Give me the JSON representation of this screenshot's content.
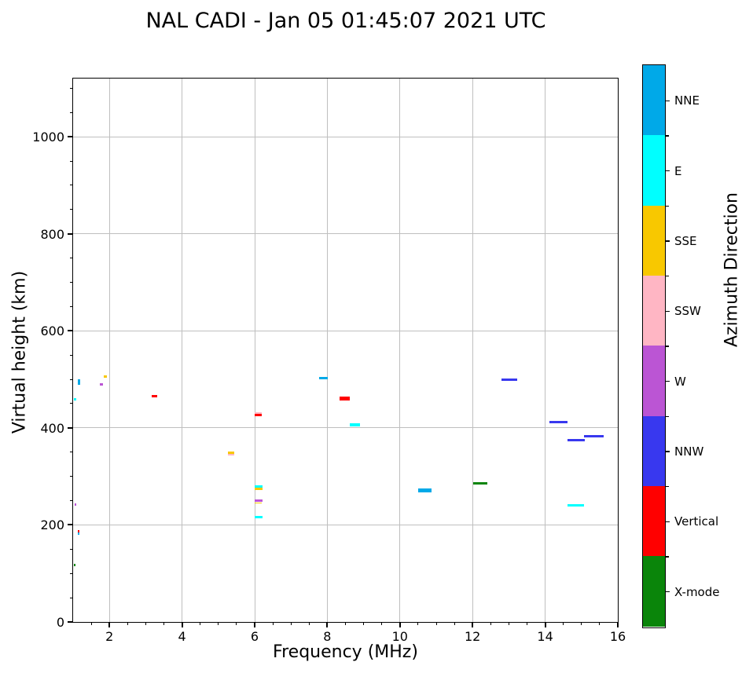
{
  "title": "NAL CADI - Jan 05 01:45:07 2021 UTC",
  "chart_data": {
    "type": "scatter",
    "title": "NAL CADI - Jan 05 01:45:07 2021 UTC",
    "xlabel": "Frequency (MHz)",
    "ylabel": "Virtual height (km)",
    "xlim": [
      1,
      16
    ],
    "ylim": [
      0,
      1120
    ],
    "x_major_ticks": [
      2,
      4,
      6,
      8,
      10,
      12,
      14,
      16
    ],
    "x_minor_step": 0.5,
    "y_major_ticks": [
      0,
      200,
      400,
      600,
      800,
      1000
    ],
    "y_minor_step": 50,
    "grid": true,
    "grid_color": "#bfbfbf",
    "colorbar": {
      "label": "Azimuth Direction",
      "entries_top_to_bottom": [
        {
          "label": "NNE",
          "color": "#00A9E8"
        },
        {
          "label": "E",
          "color": "#00FFFF"
        },
        {
          "label": "SSE",
          "color": "#F8C800"
        },
        {
          "label": "SSW",
          "color": "#FFB6C4"
        },
        {
          "label": "W",
          "color": "#BB55D4"
        },
        {
          "label": "NNW",
          "color": "#3838EF"
        },
        {
          "label": "Vertical",
          "color": "#FF0000"
        },
        {
          "label": "X-mode",
          "color": "#0A850A"
        }
      ]
    },
    "points": [
      {
        "direction": "E",
        "freq_mhz": [
          1.02,
          1.08
        ],
        "height_km": 459,
        "thickness_px": 2.5
      },
      {
        "direction": "NNE",
        "freq_mhz": [
          1.12,
          1.19
        ],
        "height_km": 494,
        "thickness_px": 7
      },
      {
        "direction": "W",
        "freq_mhz": [
          1.74,
          1.83
        ],
        "height_km": 489,
        "thickness_px": 3
      },
      {
        "direction": "SSE",
        "freq_mhz": [
          1.85,
          1.94
        ],
        "height_km": 505,
        "thickness_px": 3
      },
      {
        "direction": "W",
        "freq_mhz": [
          1.05,
          1.09
        ],
        "height_km": 242,
        "thickness_px": 2.5
      },
      {
        "direction": "Vertical",
        "freq_mhz": [
          1.12,
          1.18
        ],
        "height_km": 187,
        "thickness_px": 3
      },
      {
        "direction": "NNE",
        "freq_mhz": [
          1.12,
          1.18
        ],
        "height_km": 182,
        "thickness_px": 3
      },
      {
        "direction": "X-mode",
        "freq_mhz": [
          1.02,
          1.07
        ],
        "height_km": 117,
        "thickness_px": 2.5
      },
      {
        "direction": "Vertical",
        "freq_mhz": [
          3.17,
          3.31
        ],
        "height_km": 465,
        "thickness_px": 3
      },
      {
        "direction": "SSE",
        "freq_mhz": [
          5.26,
          5.43
        ],
        "height_km": 349,
        "thickness_px": 3
      },
      {
        "direction": "SSW",
        "freq_mhz": [
          5.26,
          5.43
        ],
        "height_km": 345,
        "thickness_px": 2.5
      },
      {
        "direction": "SSW",
        "freq_mhz": [
          6.01,
          6.2
        ],
        "height_km": 430,
        "thickness_px": 2.5
      },
      {
        "direction": "Vertical",
        "freq_mhz": [
          6.01,
          6.2
        ],
        "height_km": 426,
        "thickness_px": 3
      },
      {
        "direction": "E",
        "freq_mhz": [
          6.01,
          6.21
        ],
        "height_km": 279,
        "thickness_px": 2.5
      },
      {
        "direction": "SSE",
        "freq_mhz": [
          6.01,
          6.21
        ],
        "height_km": 274,
        "thickness_px": 2.5
      },
      {
        "direction": "W",
        "freq_mhz": [
          5.99,
          6.21
        ],
        "height_km": 250,
        "thickness_px": 3
      },
      {
        "direction": "SSE",
        "freq_mhz": [
          6.01,
          6.19
        ],
        "height_km": 245,
        "thickness_px": 1.5
      },
      {
        "direction": "E",
        "freq_mhz": [
          6.01,
          6.21
        ],
        "height_km": 216,
        "thickness_px": 2.5
      },
      {
        "direction": "NNE",
        "freq_mhz": [
          7.78,
          8.02
        ],
        "height_km": 503,
        "thickness_px": 3
      },
      {
        "direction": "Vertical",
        "freq_mhz": [
          8.34,
          8.63
        ],
        "height_km": 460,
        "thickness_px": 5
      },
      {
        "direction": "E",
        "freq_mhz": [
          8.61,
          8.91
        ],
        "height_km": 407,
        "thickness_px": 4
      },
      {
        "direction": "NNE",
        "freq_mhz": [
          10.5,
          10.86
        ],
        "height_km": 271,
        "thickness_px": 4.5
      },
      {
        "direction": "X-mode",
        "freq_mhz": [
          12.01,
          12.41
        ],
        "height_km": 286,
        "thickness_px": 3.5
      },
      {
        "direction": "NNW",
        "freq_mhz": [
          12.8,
          13.24
        ],
        "height_km": 500,
        "thickness_px": 3
      },
      {
        "direction": "NNW",
        "freq_mhz": [
          14.11,
          14.61
        ],
        "height_km": 412,
        "thickness_px": 3
      },
      {
        "direction": "NNW",
        "freq_mhz": [
          14.61,
          15.1
        ],
        "height_km": 375,
        "thickness_px": 3
      },
      {
        "direction": "NNW",
        "freq_mhz": [
          15.08,
          15.62
        ],
        "height_km": 383,
        "thickness_px": 3
      },
      {
        "direction": "E",
        "freq_mhz": [
          14.61,
          15.08
        ],
        "height_km": 240,
        "thickness_px": 3
      }
    ]
  }
}
